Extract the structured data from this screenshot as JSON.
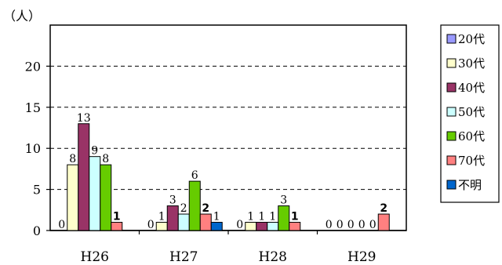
{
  "chart_data": {
    "type": "bar",
    "unit_label": "（人）",
    "categories": [
      "H26",
      "H27",
      "H28",
      "H29"
    ],
    "ylim": [
      0,
      25
    ],
    "yticks": [
      0,
      5,
      10,
      15,
      20
    ],
    "grid": true,
    "legend_position": "right",
    "series": [
      {
        "name": "20代",
        "color": "#9999ff",
        "values": [
          0,
          0,
          0,
          0
        ],
        "labels": [
          "0",
          "0",
          "0",
          "0"
        ]
      },
      {
        "name": "30代",
        "color": "#ffffcc",
        "values": [
          8,
          1,
          1,
          0
        ],
        "labels": [
          "8",
          "1",
          "1",
          "0"
        ]
      },
      {
        "name": "40代",
        "color": "#993366",
        "values": [
          13,
          3,
          1,
          0
        ],
        "labels": [
          "13",
          "3",
          "1",
          "0"
        ]
      },
      {
        "name": "50代",
        "color": "#ccffff",
        "values": [
          9,
          2,
          1,
          0
        ],
        "labels": [
          "9",
          "2",
          "1",
          "0"
        ]
      },
      {
        "name": "60代",
        "color": "#66cc00",
        "values": [
          8,
          6,
          3,
          0
        ],
        "labels": [
          "8",
          "6",
          "3",
          "0"
        ]
      },
      {
        "name": "70代",
        "color": "#ff8080",
        "values": [
          1,
          2,
          1,
          2
        ],
        "labels": [
          "1",
          "2",
          "1",
          "2"
        ]
      },
      {
        "name": "不明",
        "color": "#0066cc",
        "values": [
          0,
          1,
          0,
          0
        ],
        "labels": [
          "",
          "1",
          "",
          ""
        ]
      }
    ]
  }
}
